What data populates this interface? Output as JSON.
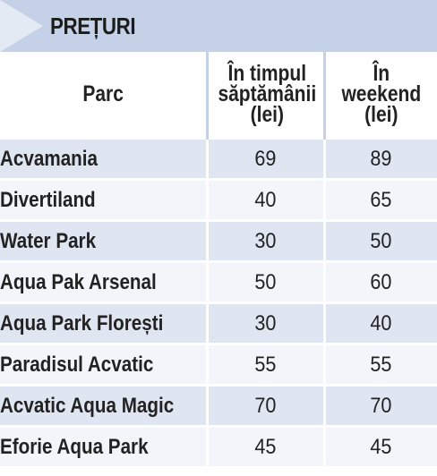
{
  "title": "PREȚURI",
  "table": {
    "headers": {
      "park": "Parc",
      "weekday": "În timpul\nsăptămânii\n(lei)",
      "weekend": "În\nweekend\n(lei)"
    },
    "rows": [
      {
        "park": "Acvamania",
        "weekday": "69",
        "weekend": "89"
      },
      {
        "park": "Divertiland",
        "weekday": "40",
        "weekend": "65"
      },
      {
        "park": "Water Park",
        "weekday": "30",
        "weekend": "50"
      },
      {
        "park": "Aqua Pak Arsenal",
        "weekday": "50",
        "weekend": "60"
      },
      {
        "park": "Aqua Park Florești",
        "weekday": "30",
        "weekend": "40"
      },
      {
        "park": "Paradisul Acvatic",
        "weekday": "55",
        "weekend": "55"
      },
      {
        "park": "Acvatic Aqua Magic",
        "weekday": "70",
        "weekend": "70"
      },
      {
        "park": "Eforie Aqua Park",
        "weekday": "45",
        "weekend": "45"
      }
    ]
  },
  "colors": {
    "header_band": "#c5d1e6",
    "arrow": "#e4eaf4",
    "row_dark": "#dfe6f2",
    "row_light": "#f3f5fa"
  }
}
